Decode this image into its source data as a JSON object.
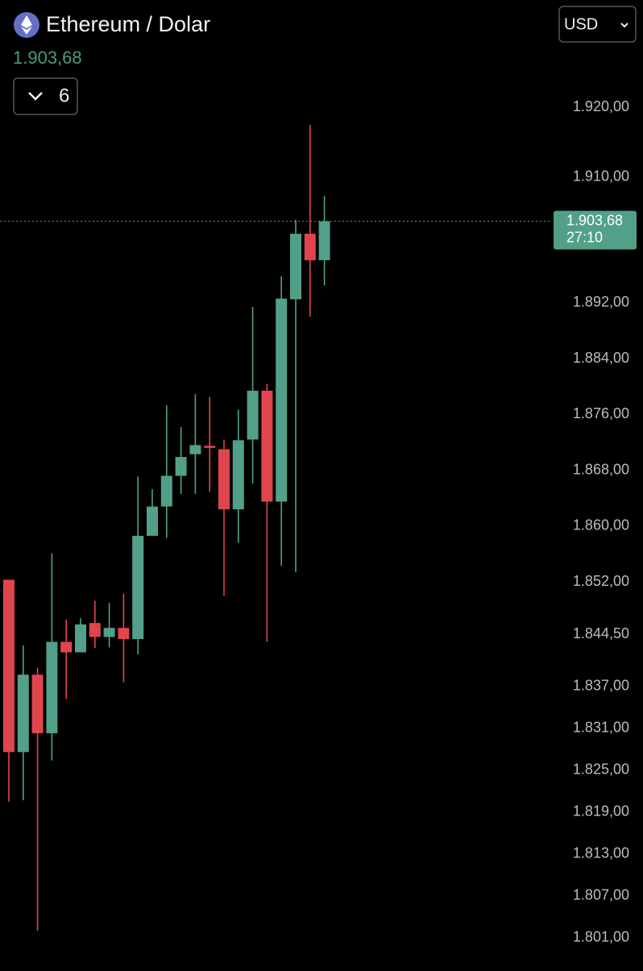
{
  "header": {
    "title": "Ethereum / Dolar",
    "interval": "6",
    "currency": "USD"
  },
  "chart_data": {
    "type": "candlestick",
    "open": [
      1852.3,
      1827.6,
      1838.7,
      1830.3,
      1843.4,
      1841.9,
      1846.1,
      1844.1,
      1845.4,
      1843.8,
      1858.6,
      1862.8,
      1867.2,
      1870.3,
      1871.5,
      1871.0,
      1862.4,
      1872.4,
      1879.4,
      1863.5,
      1892.5,
      1901.9,
      1898.1
    ],
    "high": [
      1852.3,
      1842.9,
      1839.7,
      1856.1,
      1846.6,
      1846.8,
      1849.3,
      1849.0,
      1850.3,
      1867.1,
      1865.3,
      1877.3,
      1874.2,
      1878.9,
      1878.5,
      1872.4,
      1876.7,
      1891.4,
      1880.4,
      1895.8,
      1903.9,
      1917.5,
      1907.3
    ],
    "low": [
      1820.5,
      1820.7,
      1802.0,
      1826.4,
      1835.2,
      1841.9,
      1842.5,
      1842.6,
      1837.6,
      1841.6,
      1858.6,
      1858.3,
      1864.6,
      1864.6,
      1864.9,
      1850.0,
      1857.6,
      1866.1,
      1843.4,
      1854.3,
      1853.4,
      1890.0,
      1894.5
    ],
    "close": [
      1827.6,
      1838.7,
      1830.3,
      1843.4,
      1841.9,
      1845.9,
      1844.1,
      1845.4,
      1843.8,
      1858.6,
      1862.8,
      1867.2,
      1869.9,
      1871.6,
      1871.2,
      1862.4,
      1872.3,
      1879.4,
      1863.5,
      1892.6,
      1901.9,
      1898.1,
      1903.68
    ],
    "up_color": "#52a08a",
    "down_color": "#e0454e",
    "last_price": 1903.68,
    "last_price_label": "1.903,68",
    "countdown": "27:10",
    "ylim": [
      1796.8,
      1935.4
    ],
    "yticks": [
      {
        "value": 1920,
        "label": "1.920,00"
      },
      {
        "value": 1910,
        "label": "1.910,00"
      },
      {
        "value": 1892,
        "label": "1.892,00"
      },
      {
        "value": 1884,
        "label": "1.884,00"
      },
      {
        "value": 1876,
        "label": "1.876,00"
      },
      {
        "value": 1868,
        "label": "1.868,00"
      },
      {
        "value": 1860,
        "label": "1.860,00"
      },
      {
        "value": 1852,
        "label": "1.852,00"
      },
      {
        "value": 1844.5,
        "label": "1.844,50"
      },
      {
        "value": 1837,
        "label": "1.837,00"
      },
      {
        "value": 1831,
        "label": "1.831,00"
      },
      {
        "value": 1825,
        "label": "1.825,00"
      },
      {
        "value": 1819,
        "label": "1.819,00"
      },
      {
        "value": 1813,
        "label": "1.813,00"
      },
      {
        "value": 1807,
        "label": "1.807,00"
      },
      {
        "value": 1801,
        "label": "1.801,00"
      }
    ]
  }
}
